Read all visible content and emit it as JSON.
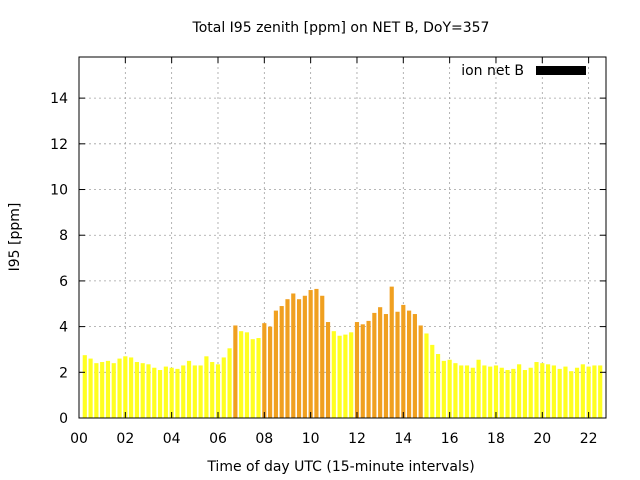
{
  "chart_data": {
    "type": "bar",
    "title": "Total I95 zenith [ppm] on NET B, DoY=357",
    "xlabel": "Time of day UTC (15-minute intervals)",
    "ylabel": "I95 [ppm]",
    "xlim": [
      0,
      22.75
    ],
    "ylim": [
      0,
      15.8
    ],
    "xticks": [
      "00",
      "02",
      "04",
      "06",
      "08",
      "10",
      "12",
      "14",
      "16",
      "18",
      "20",
      "22"
    ],
    "yticks": [
      "0",
      "2",
      "4",
      "6",
      "8",
      "10",
      "12",
      "14"
    ],
    "grid": true,
    "legend": {
      "position": "top-right",
      "label": "ion net B",
      "swatch_color": "#000000"
    },
    "colors": {
      "low": "#ffff20",
      "high": "#f0a020"
    },
    "bar_width_hours": 0.18,
    "threshold": 4.0,
    "bars": [
      {
        "x": 0.25,
        "value": 2.75
      },
      {
        "x": 0.5,
        "value": 2.6
      },
      {
        "x": 0.75,
        "value": 2.4
      },
      {
        "x": 1.0,
        "value": 2.45
      },
      {
        "x": 1.25,
        "value": 2.5
      },
      {
        "x": 1.5,
        "value": 2.4
      },
      {
        "x": 1.75,
        "value": 2.6
      },
      {
        "x": 2.0,
        "value": 2.7
      },
      {
        "x": 2.25,
        "value": 2.65
      },
      {
        "x": 2.5,
        "value": 2.45
      },
      {
        "x": 2.75,
        "value": 2.4
      },
      {
        "x": 3.0,
        "value": 2.35
      },
      {
        "x": 3.25,
        "value": 2.2
      },
      {
        "x": 3.5,
        "value": 2.1
      },
      {
        "x": 3.75,
        "value": 2.25
      },
      {
        "x": 4.0,
        "value": 2.2
      },
      {
        "x": 4.25,
        "value": 2.15
      },
      {
        "x": 4.5,
        "value": 2.3
      },
      {
        "x": 4.75,
        "value": 2.5
      },
      {
        "x": 5.0,
        "value": 2.3
      },
      {
        "x": 5.25,
        "value": 2.3
      },
      {
        "x": 5.5,
        "value": 2.7
      },
      {
        "x": 5.75,
        "value": 2.45
      },
      {
        "x": 6.0,
        "value": 2.35
      },
      {
        "x": 6.25,
        "value": 2.65
      },
      {
        "x": 6.5,
        "value": 3.05
      },
      {
        "x": 6.75,
        "value": 4.05
      },
      {
        "x": 7.0,
        "value": 3.8
      },
      {
        "x": 7.25,
        "value": 3.75
      },
      {
        "x": 7.5,
        "value": 3.45
      },
      {
        "x": 7.75,
        "value": 3.5
      },
      {
        "x": 8.0,
        "value": 4.15
      },
      {
        "x": 8.25,
        "value": 4.0
      },
      {
        "x": 8.5,
        "value": 4.7
      },
      {
        "x": 8.75,
        "value": 4.9
      },
      {
        "x": 9.0,
        "value": 5.2
      },
      {
        "x": 9.25,
        "value": 5.45
      },
      {
        "x": 9.5,
        "value": 5.2
      },
      {
        "x": 9.75,
        "value": 5.35
      },
      {
        "x": 10.0,
        "value": 5.6
      },
      {
        "x": 10.25,
        "value": 5.65
      },
      {
        "x": 10.5,
        "value": 5.35
      },
      {
        "x": 10.75,
        "value": 4.2
      },
      {
        "x": 11.0,
        "value": 3.8
      },
      {
        "x": 11.25,
        "value": 3.6
      },
      {
        "x": 11.5,
        "value": 3.65
      },
      {
        "x": 11.75,
        "value": 3.75
      },
      {
        "x": 12.0,
        "value": 4.2
      },
      {
        "x": 12.25,
        "value": 4.1
      },
      {
        "x": 12.5,
        "value": 4.25
      },
      {
        "x": 12.75,
        "value": 4.6
      },
      {
        "x": 13.0,
        "value": 4.85
      },
      {
        "x": 13.25,
        "value": 4.55
      },
      {
        "x": 13.5,
        "value": 5.75
      },
      {
        "x": 13.75,
        "value": 4.65
      },
      {
        "x": 14.0,
        "value": 4.95
      },
      {
        "x": 14.25,
        "value": 4.7
      },
      {
        "x": 14.5,
        "value": 4.55
      },
      {
        "x": 14.75,
        "value": 4.05
      },
      {
        "x": 15.0,
        "value": 3.7
      },
      {
        "x": 15.25,
        "value": 3.2
      },
      {
        "x": 15.5,
        "value": 2.8
      },
      {
        "x": 15.75,
        "value": 2.5
      },
      {
        "x": 16.0,
        "value": 2.55
      },
      {
        "x": 16.25,
        "value": 2.4
      },
      {
        "x": 16.5,
        "value": 2.3
      },
      {
        "x": 16.75,
        "value": 2.3
      },
      {
        "x": 17.0,
        "value": 2.2
      },
      {
        "x": 17.25,
        "value": 2.55
      },
      {
        "x": 17.5,
        "value": 2.3
      },
      {
        "x": 17.75,
        "value": 2.25
      },
      {
        "x": 18.0,
        "value": 2.3
      },
      {
        "x": 18.25,
        "value": 2.2
      },
      {
        "x": 18.5,
        "value": 2.1
      },
      {
        "x": 18.75,
        "value": 2.15
      },
      {
        "x": 19.0,
        "value": 2.35
      },
      {
        "x": 19.25,
        "value": 2.1
      },
      {
        "x": 19.5,
        "value": 2.2
      },
      {
        "x": 19.75,
        "value": 2.45
      },
      {
        "x": 20.0,
        "value": 2.4
      },
      {
        "x": 20.25,
        "value": 2.35
      },
      {
        "x": 20.5,
        "value": 2.3
      },
      {
        "x": 20.75,
        "value": 2.15
      },
      {
        "x": 21.0,
        "value": 2.25
      },
      {
        "x": 21.25,
        "value": 2.05
      },
      {
        "x": 21.5,
        "value": 2.2
      },
      {
        "x": 21.75,
        "value": 2.35
      },
      {
        "x": 22.0,
        "value": 2.25
      },
      {
        "x": 22.25,
        "value": 2.3
      },
      {
        "x": 22.5,
        "value": 2.3
      }
    ]
  }
}
